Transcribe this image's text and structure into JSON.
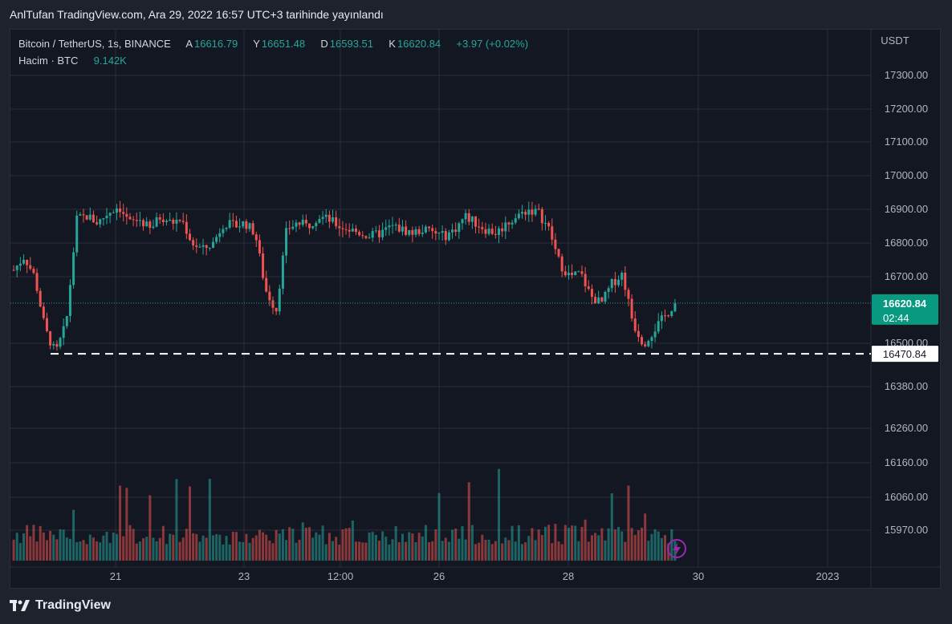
{
  "header": {
    "publisher": "AnlTufan TradingView.com, Ara 29, 2022 16:57 UTC+3 tarihinde yayınlandı"
  },
  "legend": {
    "symbol": "Bitcoin / TetherUS, 1s, BINANCE",
    "open_label": "A",
    "open": "16616.79",
    "high_label": "Y",
    "high": "16651.48",
    "low_label": "D",
    "low": "16593.51",
    "close_label": "K",
    "close": "16620.84",
    "change": "+3.97 (+0.02%)",
    "volume_label": "Hacim · BTC",
    "volume": "9.142K"
  },
  "price_scale": {
    "currency": "USDT",
    "last_price": "16620.84",
    "countdown": "02:44",
    "level_line": "16470.84"
  },
  "footer": {
    "brand": "TradingView"
  },
  "colors": {
    "up": "#26a69a",
    "down": "#ef5350",
    "background": "#131722",
    "grid": "#2a2e39",
    "last_price_bg": "#089981"
  },
  "chart_data": {
    "type": "candlestick",
    "title": "Bitcoin / TetherUS, 1s, BINANCE",
    "ylabel": "USDT",
    "y_ticks": [
      "17300.00",
      "17200.00",
      "17100.00",
      "17000.00",
      "16900.00",
      "16800.00",
      "16700.00",
      "16500.00",
      "16380.00",
      "16260.00",
      "16160.00",
      "16060.00",
      "15970.00"
    ],
    "x_ticks": [
      "21",
      "23",
      "12:00",
      "26",
      "28",
      "30",
      "2023"
    ],
    "grid": true,
    "level_line": 16470.84,
    "last_price": 16620.84,
    "ohlc_anchor_closes": [
      16720,
      16760,
      16700,
      16540,
      16470,
      16560,
      16870,
      16880,
      16860,
      16890,
      16910,
      16860,
      16870,
      16840,
      16880,
      16860,
      16870,
      16800,
      16780,
      16800,
      16860,
      16850,
      16860,
      16830,
      16660,
      16600,
      16840,
      16860,
      16850,
      16880,
      16870,
      16850,
      16840,
      16830,
      16820,
      16830,
      16850,
      16840,
      16830,
      16840,
      16830,
      16820,
      16840,
      16880,
      16860,
      16840,
      16830,
      16860,
      16880,
      16900,
      16890,
      16840,
      16740,
      16700,
      16710,
      16640,
      16620,
      16680,
      16710,
      16560,
      16500,
      16540,
      16580,
      16620
    ]
  }
}
